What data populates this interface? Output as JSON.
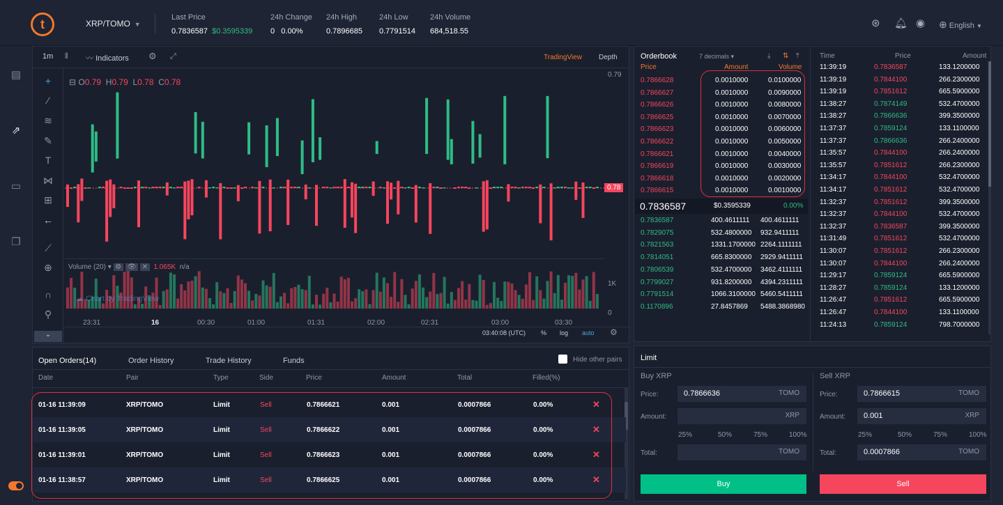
{
  "header": {
    "pair": "XRP/TOMO",
    "stats": [
      {
        "label": "Last Price",
        "value": "0.7836587",
        "extra": "$0.3595339"
      },
      {
        "label": "24h Change",
        "value": "0",
        "extra": "0.00%"
      },
      {
        "label": "24h High",
        "value": "0.7896685"
      },
      {
        "label": "24h Low",
        "value": "0.7791514"
      },
      {
        "label": "24h Volume",
        "value": "684,518.55"
      }
    ],
    "language": "English"
  },
  "chart": {
    "interval": "1m",
    "indicators_label": "Indicators",
    "view_tabs": [
      "TradingView",
      "Depth"
    ],
    "ohlc": {
      "o": "0.79",
      "h": "0.79",
      "l": "0.78",
      "c": "0.78"
    },
    "price_tag": "0.78",
    "price_axis": [
      "0.79",
      "1K",
      "0"
    ],
    "volume_label": "Volume (20)",
    "volume_value": "1.065K",
    "volume_na": "n/a",
    "watermark": "Chart by TradingView",
    "time_axis": [
      "23:31",
      "16",
      "00:30",
      "01:00",
      "01:31",
      "02:00",
      "02:31",
      "03:00",
      "03:30"
    ],
    "clock": "03:40:08 (UTC)",
    "controls": [
      "%",
      "log",
      "auto"
    ]
  },
  "orders": {
    "tabs": [
      "Open Orders(14)",
      "Order History",
      "Trade History",
      "Funds"
    ],
    "hide_label": "Hide other pairs",
    "columns": [
      "Date",
      "Pair",
      "Type",
      "Side",
      "Price",
      "Amount",
      "Total",
      "Filled(%)"
    ],
    "rows": [
      {
        "date": "01-16 11:39:09",
        "pair": "XRP/TOMO",
        "type": "Limit",
        "side": "Sell",
        "price": "0.7866621",
        "amount": "0.001",
        "total": "0.0007866",
        "filled": "0.00%"
      },
      {
        "date": "01-16 11:39:05",
        "pair": "XRP/TOMO",
        "type": "Limit",
        "side": "Sell",
        "price": "0.7866622",
        "amount": "0.001",
        "total": "0.0007866",
        "filled": "0.00%"
      },
      {
        "date": "01-16 11:39:01",
        "pair": "XRP/TOMO",
        "type": "Limit",
        "side": "Sell",
        "price": "0.7866623",
        "amount": "0.001",
        "total": "0.0007866",
        "filled": "0.00%"
      },
      {
        "date": "01-16 11:38:57",
        "pair": "XRP/TOMO",
        "type": "Limit",
        "side": "Sell",
        "price": "0.7866625",
        "amount": "0.001",
        "total": "0.0007866",
        "filled": "0.00%"
      }
    ]
  },
  "orderbook": {
    "title": "Orderbook",
    "decimals": "7 decimals",
    "columns": [
      "Price",
      "Amount",
      "Volume"
    ],
    "asks": [
      [
        "0.7866628",
        "0.0010000",
        "0.0100000"
      ],
      [
        "0.7866627",
        "0.0010000",
        "0.0090000"
      ],
      [
        "0.7866626",
        "0.0010000",
        "0.0080000"
      ],
      [
        "0.7866625",
        "0.0010000",
        "0.0070000"
      ],
      [
        "0.7866623",
        "0.0010000",
        "0.0060000"
      ],
      [
        "0.7866622",
        "0.0010000",
        "0.0050000"
      ],
      [
        "0.7866621",
        "0.0010000",
        "0.0040000"
      ],
      [
        "0.7866619",
        "0.0010000",
        "0.0030000"
      ],
      [
        "0.7866618",
        "0.0010000",
        "0.0020000"
      ],
      [
        "0.7866615",
        "0.0010000",
        "0.0010000"
      ]
    ],
    "mid_price": "0.7836587",
    "mid_usd": "$0.3595339",
    "mid_change": "0.00%",
    "bids": [
      [
        "0.7836587",
        "400.4611111",
        "400.4611111"
      ],
      [
        "0.7829075",
        "532.4800000",
        "932.9411111"
      ],
      [
        "0.7821563",
        "1331.1700000",
        "2264.1111111"
      ],
      [
        "0.7814051",
        "665.8300000",
        "2929.9411111"
      ],
      [
        "0.7806539",
        "532.4700000",
        "3462.4111111"
      ],
      [
        "0.7799027",
        "931.8200000",
        "4394.2311111"
      ],
      [
        "0.7791514",
        "1066.3100000",
        "5460.5411111"
      ],
      [
        "0.1170896",
        "27.8457869",
        "5488.3868980"
      ]
    ]
  },
  "trades": {
    "columns": [
      "Time",
      "Price",
      "Amount"
    ],
    "rows": [
      [
        "11:39:19",
        "0.7836587",
        "133.1200000",
        "red"
      ],
      [
        "11:39:19",
        "0.7844100",
        "266.2300000",
        "red"
      ],
      [
        "11:39:19",
        "0.7851612",
        "665.5900000",
        "red"
      ],
      [
        "11:38:27",
        "0.7874149",
        "532.4700000",
        "green"
      ],
      [
        "11:38:27",
        "0.7866636",
        "399.3500000",
        "green"
      ],
      [
        "11:37:37",
        "0.7859124",
        "133.1100000",
        "green"
      ],
      [
        "11:37:37",
        "0.7866636",
        "266.2400000",
        "green"
      ],
      [
        "11:35:57",
        "0.7844100",
        "266.2400000",
        "red"
      ],
      [
        "11:35:57",
        "0.7851612",
        "266.2300000",
        "red"
      ],
      [
        "11:34:17",
        "0.7844100",
        "532.4700000",
        "red"
      ],
      [
        "11:34:17",
        "0.7851612",
        "532.4700000",
        "red"
      ],
      [
        "11:32:37",
        "0.7851612",
        "399.3500000",
        "red"
      ],
      [
        "11:32:37",
        "0.7844100",
        "532.4700000",
        "red"
      ],
      [
        "11:32:37",
        "0.7836587",
        "399.3500000",
        "red"
      ],
      [
        "11:31:49",
        "0.7851612",
        "532.4700000",
        "red"
      ],
      [
        "11:30:07",
        "0.7851612",
        "266.2300000",
        "red"
      ],
      [
        "11:30:07",
        "0.7844100",
        "266.2400000",
        "red"
      ],
      [
        "11:29:17",
        "0.7859124",
        "665.5900000",
        "green"
      ],
      [
        "11:28:27",
        "0.7859124",
        "133.1200000",
        "green"
      ],
      [
        "11:26:47",
        "0.7851612",
        "665.5900000",
        "red"
      ],
      [
        "11:26:47",
        "0.7844100",
        "133.1100000",
        "red"
      ],
      [
        "11:24:13",
        "0.7859124",
        "798.7000000",
        "green"
      ]
    ]
  },
  "limit": {
    "title": "Limit",
    "buy_title": "Buy XRP",
    "sell_title": "Sell XRP",
    "price_label": "Price:",
    "amount_label": "Amount:",
    "total_label": "Total:",
    "buy_price": "0.7866636",
    "sell_price": "0.7866615",
    "sell_amount": "0.001",
    "sell_total": "0.0007866",
    "quote_unit": "TOMO",
    "base_unit": "XRP",
    "percents": [
      "25%",
      "50%",
      "75%",
      "100%"
    ],
    "buy_button": "Buy",
    "sell_button": "Sell"
  },
  "colors": {
    "green": "#2ebd85",
    "red": "#f6465d",
    "accent": "#f3782b"
  }
}
